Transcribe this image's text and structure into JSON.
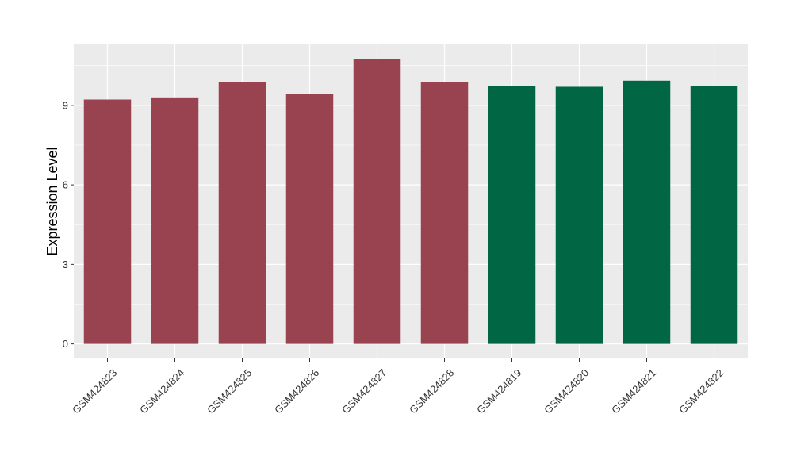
{
  "chart_data": {
    "type": "bar",
    "title": "",
    "xlabel": "",
    "ylabel": "Expression Level",
    "categories": [
      "GSM424823",
      "GSM424824",
      "GSM424825",
      "GSM424826",
      "GSM424827",
      "GSM424828",
      "GSM424819",
      "GSM424820",
      "GSM424821",
      "GSM424822"
    ],
    "values": [
      9.22,
      9.3,
      9.88,
      9.43,
      10.76,
      9.88,
      9.73,
      9.7,
      9.93,
      9.73
    ],
    "bar_colors": [
      "#9a4350",
      "#9a4350",
      "#9a4350",
      "#9a4350",
      "#9a4350",
      "#9a4350",
      "#006643",
      "#006643",
      "#006643",
      "#006643"
    ],
    "yticks": [
      0,
      3,
      6,
      9
    ],
    "ylim": [
      -0.55,
      11.3
    ],
    "grid": true,
    "legend": "none",
    "panel_background": "#ebebeb",
    "grid_color": "#ffffff"
  }
}
